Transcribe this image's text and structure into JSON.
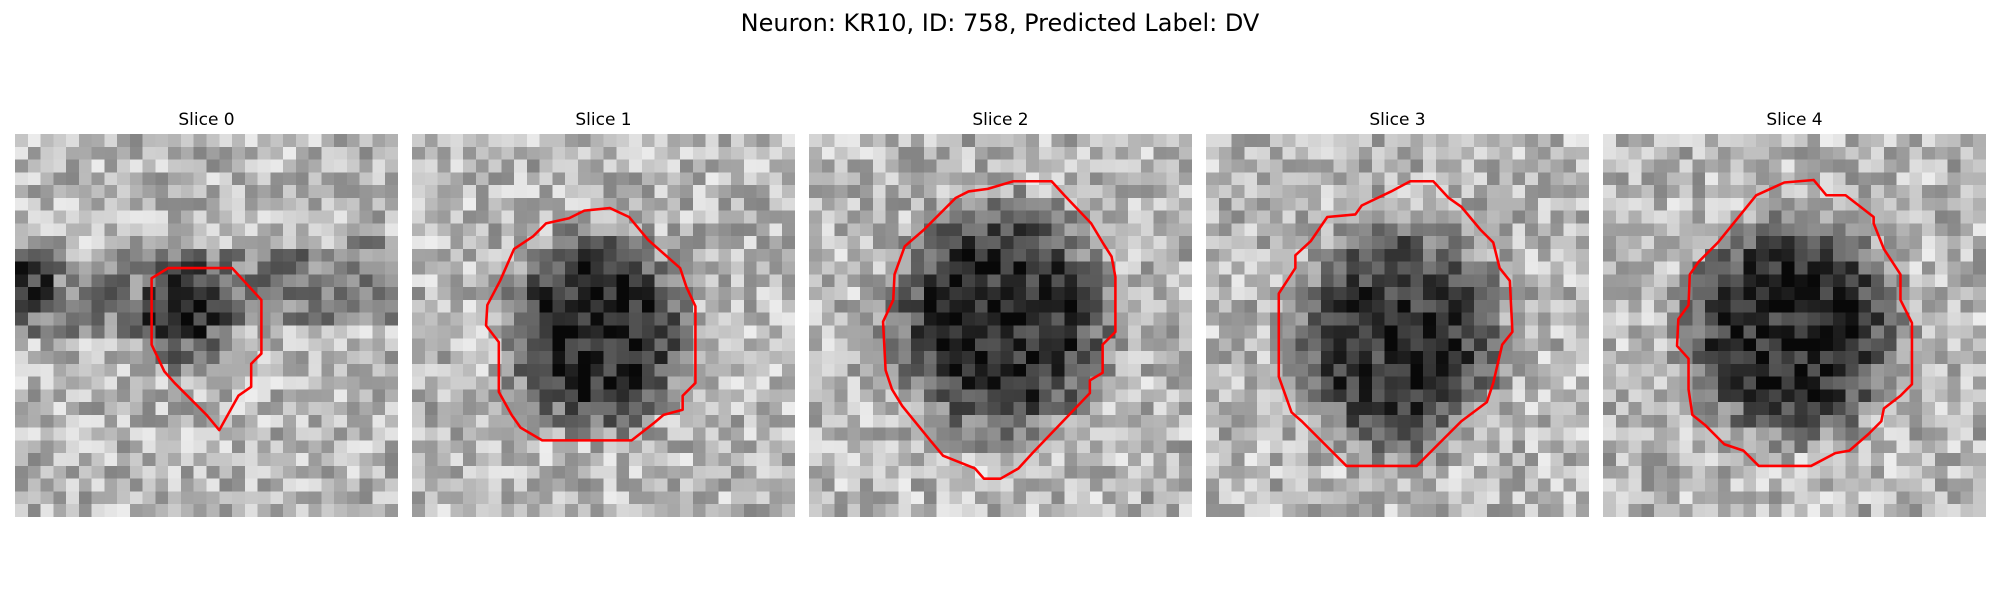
{
  "figure": {
    "title": "Neuron: KR10, ID: 758, Predicted Label: DV"
  },
  "panels": [
    {
      "title": "Slice 0"
    },
    {
      "title": "Slice 1"
    },
    {
      "title": "Slice 2"
    },
    {
      "title": "Slice 3"
    },
    {
      "title": "Slice 4"
    }
  ],
  "colors": {
    "contour": "#ff0000",
    "background": "#ffffff"
  }
}
